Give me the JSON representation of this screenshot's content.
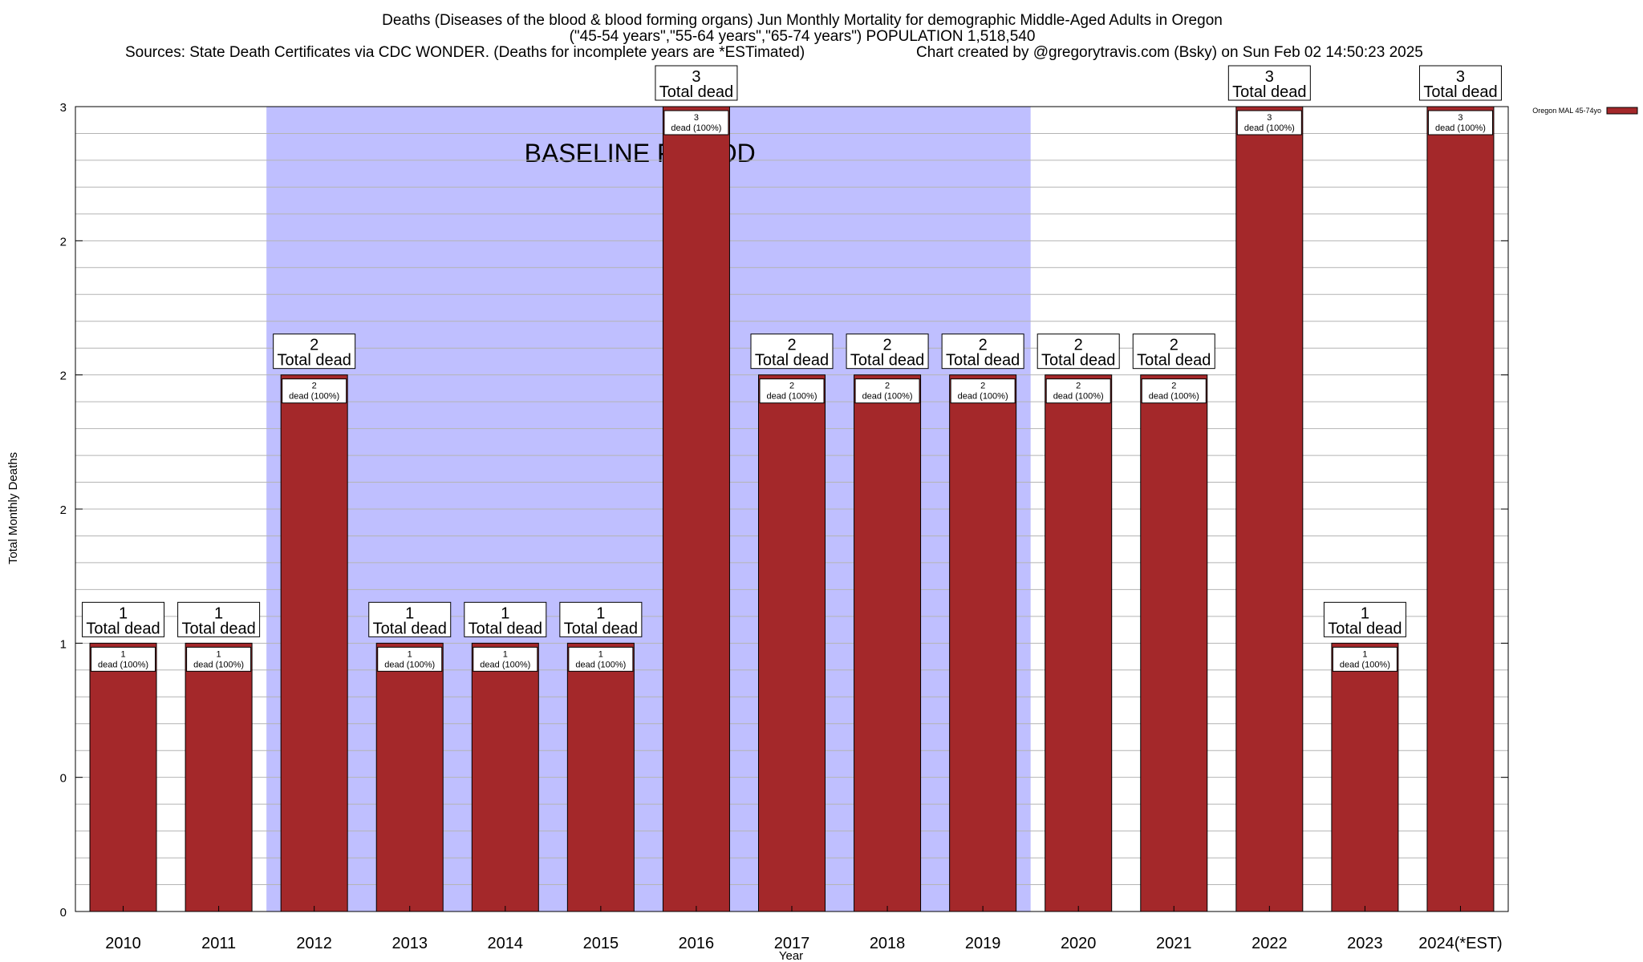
{
  "chart_data": {
    "type": "bar",
    "title_lines": [
      "Deaths (Diseases of the blood & blood forming organs) Jun Monthly Mortality for demographic Middle-Aged Adults in Oregon",
      "(\"45-54 years\",\"55-64 years\",\"65-74 years\") POPULATION 1,518,540"
    ],
    "sources": "Sources: State Death Certificates via CDC WONDER. (Deaths for incomplete years are *ESTimated)",
    "credit": "Chart created by @gregorytravis.com (Bsky) on Sun Feb 02 14:50:23 2025",
    "xlabel": "Year",
    "ylabel": "Total Monthly Deaths",
    "ylim": [
      0,
      3
    ],
    "ytick_values": [
      0,
      0.5,
      1,
      1.5,
      2,
      2.5,
      3
    ],
    "ytick_labels": [
      "0",
      "0",
      "1",
      "2",
      "2",
      "2",
      "3"
    ],
    "minor_grid_step": 0.1,
    "categories": [
      "2010",
      "2011",
      "2012",
      "2013",
      "2014",
      "2015",
      "2016",
      "2017",
      "2018",
      "2019",
      "2020",
      "2021",
      "2022",
      "2023",
      "2024(*EST)"
    ],
    "series": [
      {
        "name": "Oregon MAL 45-74yo",
        "color": "#a4282a",
        "values": [
          1,
          1,
          2,
          1,
          1,
          1,
          3,
          2,
          2,
          2,
          2,
          2,
          3,
          1,
          3
        ]
      }
    ],
    "inner_labels": [
      {
        "count": "1",
        "text": "dead (100%)"
      },
      {
        "count": "1",
        "text": "dead (100%)"
      },
      {
        "count": "2",
        "text": "dead (100%)"
      },
      {
        "count": "1",
        "text": "dead (100%)"
      },
      {
        "count": "1",
        "text": "dead (100%)"
      },
      {
        "count": "1",
        "text": "dead (100%)"
      },
      {
        "count": "3",
        "text": "dead (100%)"
      },
      {
        "count": "2",
        "text": "dead (100%)"
      },
      {
        "count": "2",
        "text": "dead (100%)"
      },
      {
        "count": "2",
        "text": "dead (100%)"
      },
      {
        "count": "2",
        "text": "dead (100%)"
      },
      {
        "count": "2",
        "text": "dead (100%)"
      },
      {
        "count": "3",
        "text": "dead (100%)"
      },
      {
        "count": "1",
        "text": "dead (100%)"
      },
      {
        "count": "3",
        "text": "dead (100%)"
      }
    ],
    "total_labels": [
      {
        "count": "1",
        "text": "Total dead"
      },
      {
        "count": "1",
        "text": "Total dead"
      },
      {
        "count": "2",
        "text": "Total dead"
      },
      {
        "count": "1",
        "text": "Total dead"
      },
      {
        "count": "1",
        "text": "Total dead"
      },
      {
        "count": "1",
        "text": "Total dead"
      },
      {
        "count": "3",
        "text": "Total dead"
      },
      {
        "count": "2",
        "text": "Total dead"
      },
      {
        "count": "2",
        "text": "Total dead"
      },
      {
        "count": "2",
        "text": "Total dead"
      },
      {
        "count": "2",
        "text": "Total dead"
      },
      {
        "count": "2",
        "text": "Total dead"
      },
      {
        "count": "3",
        "text": "Total dead"
      },
      {
        "count": "1",
        "text": "Total dead"
      },
      {
        "count": "3",
        "text": "Total dead"
      }
    ],
    "baseline": {
      "label": "BASELINE PERIOD",
      "start_category": "2012",
      "end_category": "2019",
      "color": "#bfbfff"
    },
    "legend": {
      "position": "top-right",
      "label": "Oregon MAL 45-74yo"
    }
  }
}
